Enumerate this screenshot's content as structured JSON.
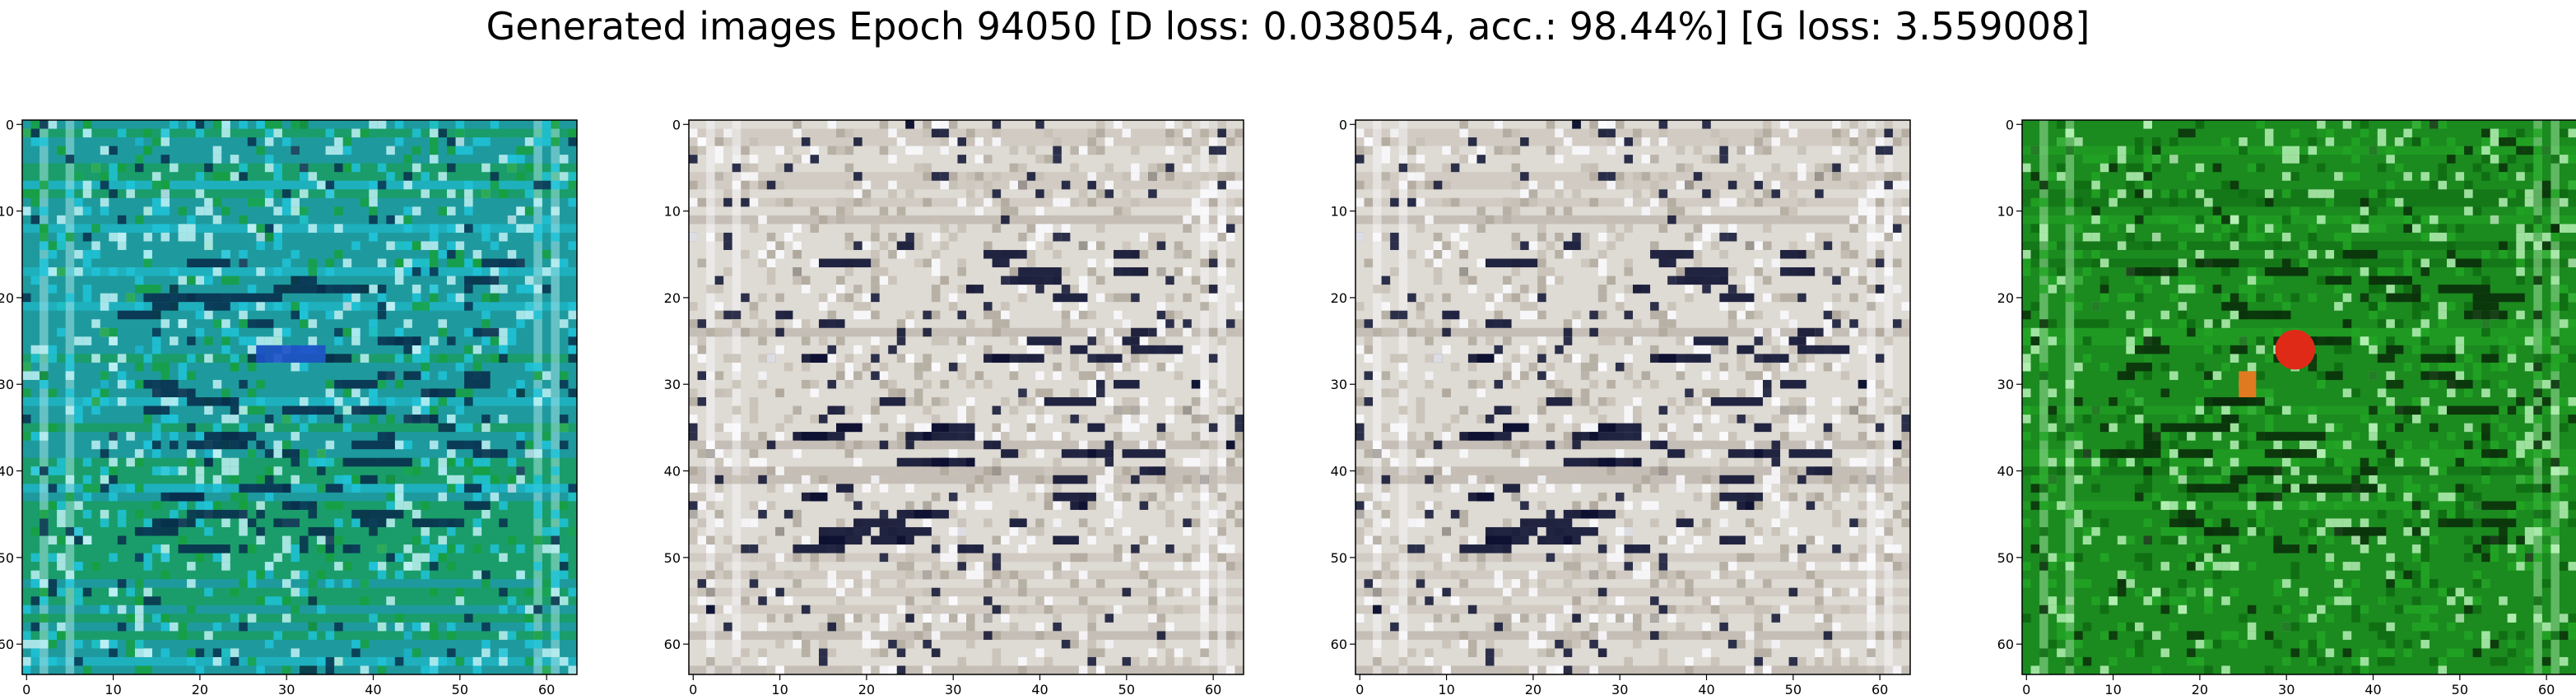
{
  "title": "Generated images Epoch 94050 [D loss: 0.038054, acc.: 98.44%] [G loss: 3.559008]",
  "panels": [
    {
      "name": "image-panel-1",
      "palette": {
        "bg": "#1e9a9e",
        "accent1": "#20c3d8",
        "accent2": "#18a040",
        "dark": "#08304c",
        "light": "#bff1f4",
        "hot": "#1e4fc8"
      }
    },
    {
      "name": "image-panel-2",
      "palette": {
        "bg": "#dedad4",
        "accent1": "#c7bfb5",
        "accent2": "#b0a89c",
        "dark": "#0c1030",
        "light": "#fbfbff",
        "hot": "#7a3a40"
      }
    },
    {
      "name": "image-panel-3",
      "palette": {
        "bg": "#dedad4",
        "accent1": "#c7bfb5",
        "accent2": "#b0a89c",
        "dark": "#0c1030",
        "light": "#fbfbff",
        "hot": "#7a3a40"
      }
    },
    {
      "name": "image-panel-4",
      "palette": {
        "bg": "#1b8a1f",
        "accent1": "#22a524",
        "accent2": "#0e6a12",
        "dark": "#0a2e0a",
        "light": "#b5f0b5",
        "hot": "#e02a18"
      }
    }
  ],
  "axis": {
    "x_ticks": [
      "0",
      "10",
      "20",
      "30",
      "40",
      "50",
      "60"
    ],
    "y_ticks": [
      "0",
      "10",
      "20",
      "30",
      "40",
      "50",
      "60"
    ]
  }
}
